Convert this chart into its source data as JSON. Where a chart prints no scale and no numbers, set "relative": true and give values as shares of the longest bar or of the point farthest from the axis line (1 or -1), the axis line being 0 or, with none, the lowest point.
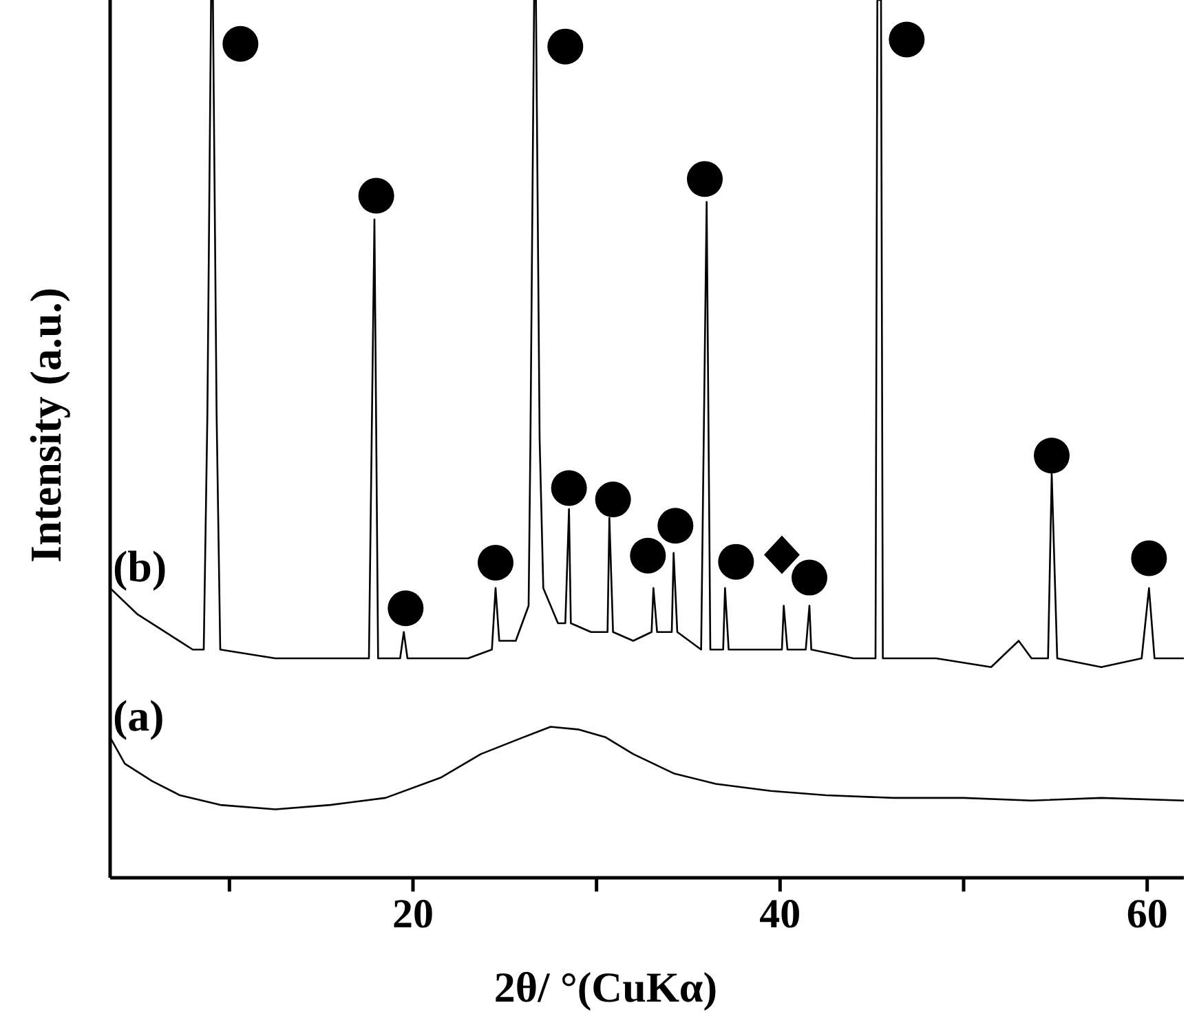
{
  "chart_data": {
    "type": "line",
    "xlabel": "2θ/ °(CuKα)",
    "ylabel": "Intensity (a.u.)",
    "relative": true,
    "legend": false,
    "grid": false,
    "xlim": [
      3.5,
      62
    ],
    "xticks": [
      {
        "value": 10,
        "label": null
      },
      20,
      {
        "value": 30,
        "label": null
      },
      40,
      {
        "value": 50,
        "label": null
      },
      60
    ],
    "series": [
      {
        "name": "(b)",
        "color": "#000000",
        "x": [
          3.5,
          5.0,
          6.5,
          8.0,
          8.6,
          8.8,
          9.0,
          9.1,
          9.3,
          9.5,
          12.5,
          16.3,
          17.6,
          17.9,
          18.1,
          19.3,
          19.5,
          19.7,
          23.0,
          24.3,
          24.5,
          24.7,
          25.6,
          26.3,
          26.4,
          26.6,
          26.7,
          26.9,
          27.1,
          27.9,
          28.3,
          28.5,
          28.6,
          29.7,
          30.6,
          30.7,
          30.9,
          32.0,
          33.0,
          33.1,
          33.3,
          34.1,
          34.2,
          34.4,
          35.7,
          36.0,
          36.2,
          36.9,
          37.0,
          37.2,
          38.7,
          40.1,
          40.2,
          40.4,
          41.4,
          41.6,
          41.7,
          44.0,
          45.2,
          45.3,
          45.5,
          45.6,
          48.5,
          51.5,
          53.0,
          53.7,
          54.6,
          54.8,
          55.1,
          57.5,
          59.7,
          60.1,
          60.4,
          62.0
        ],
        "values": [
          0.33,
          0.3,
          0.28,
          0.26,
          0.26,
          0.53,
          1,
          1,
          0.53,
          0.26,
          0.25,
          0.25,
          0.25,
          0.75,
          0.25,
          0.25,
          0.28,
          0.25,
          0.25,
          0.26,
          0.33,
          0.27,
          0.27,
          0.31,
          0.5,
          1,
          1,
          0.5,
          0.33,
          0.29,
          0.29,
          0.42,
          0.29,
          0.28,
          0.28,
          0.41,
          0.28,
          0.27,
          0.28,
          0.33,
          0.28,
          0.28,
          0.37,
          0.28,
          0.26,
          0.77,
          0.26,
          0.26,
          0.33,
          0.26,
          0.26,
          0.26,
          0.31,
          0.26,
          0.26,
          0.31,
          0.26,
          0.25,
          0.25,
          1,
          1,
          0.25,
          0.25,
          0.24,
          0.27,
          0.25,
          0.25,
          0.46,
          0.25,
          0.24,
          0.25,
          0.33,
          0.25,
          0.25
        ]
      },
      {
        "name": "(a)",
        "color": "#000000",
        "x": [
          3.5,
          4.3,
          5.8,
          7.3,
          9.5,
          12.5,
          15.5,
          18.5,
          21.5,
          23.7,
          26.0,
          27.5,
          29.0,
          30.5,
          32.0,
          34.2,
          36.5,
          39.5,
          42.5,
          46.2,
          50.0,
          53.7,
          57.5,
          62.0
        ],
        "values": [
          0.16,
          0.13,
          0.11,
          0.094,
          0.083,
          0.078,
          0.083,
          0.091,
          0.114,
          0.141,
          0.16,
          0.172,
          0.169,
          0.16,
          0.141,
          0.119,
          0.107,
          0.099,
          0.094,
          0.091,
          0.091,
          0.088,
          0.091,
          0.088
        ]
      }
    ]
  }
}
